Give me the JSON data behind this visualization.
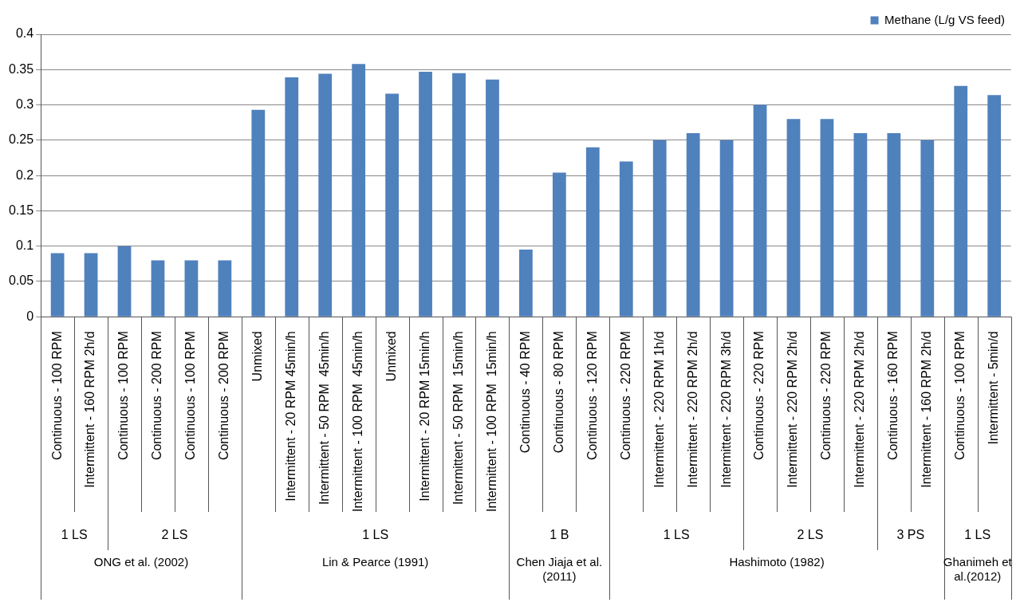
{
  "chart_data": {
    "type": "bar",
    "categories": [
      "Continuous - 100 RPM",
      "Intermittent - 160 RPM 2h/d",
      "Continuous - 100 RPM",
      "Continuous - 200 RPM",
      "Continuous - 100 RPM",
      "Continuous - 200 RPM",
      "Unmixed",
      "Intermittent - 20 RPM 45min/h",
      "Intermittent - 50 RPM  45min/h",
      "Intermittent - 100 RPM  45min/h",
      "Unmixed",
      "Intermittent - 20 RPM 15min/h",
      "Intermittent - 50 RPM  15min/h",
      "Intermittent - 100 RPM  15min/h",
      "Continuous - 40 RPM",
      "Continuous - 80 RPM",
      "Continuous - 120 RPM",
      "Continuous - 220 RPM",
      "Intermittent - 220 RPM 1h/d",
      "Intermittent - 220 RPM 2h/d",
      "Intermittent - 220 RPM 3h/d",
      "Continuous - 220 RPM",
      "Intermittent - 220 RPM 2h/d",
      "Continuous - 220 RPM",
      "Intermittent - 220 RPM 2h/d",
      "Continuous - 160 RPM",
      "Intermittent - 160 RPM 2h/d",
      "Continuous - 100 RPM",
      "Intermittent - 5min/d"
    ],
    "series": [
      {
        "name": "Methane (L/g VS feed)",
        "color": "#4f81bd",
        "values": [
          0.09,
          0.09,
          0.1,
          0.08,
          0.08,
          0.08,
          0.293,
          0.339,
          0.344,
          0.358,
          0.316,
          0.347,
          0.345,
          0.336,
          0.095,
          0.204,
          0.24,
          0.22,
          0.25,
          0.26,
          0.25,
          0.3,
          0.28,
          0.28,
          0.26,
          0.26,
          0.25,
          0.327,
          0.314
        ]
      }
    ],
    "ylim": [
      0,
      0.4
    ],
    "yticks": [
      0,
      0.05,
      0.1,
      0.15,
      0.2,
      0.25,
      0.3,
      0.35,
      0.4
    ],
    "grid": "y",
    "legend": "top right",
    "annotations": [
      "1 LS",
      "2 LS",
      "1 LS",
      "1 B",
      "1 LS",
      "2 LS",
      "3 PS",
      "1 LS",
      "ONG et al. (2002)",
      "Lin & Pearce (1991)",
      "Chen Jiaja et al. (2011)",
      "Hashimoto (1982)",
      "Ghanimeh et al.(2012)"
    ]
  }
}
